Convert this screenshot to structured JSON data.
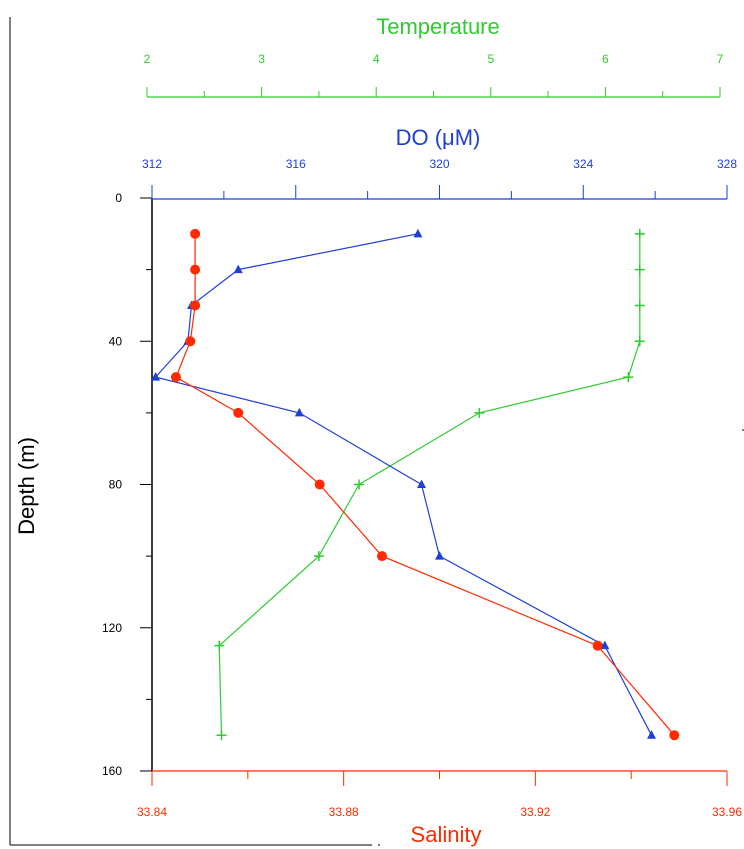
{
  "chart_data": {
    "type": "line",
    "y_axis": {
      "label": "Depth (m)",
      "range": [
        0,
        160
      ],
      "inverted": true,
      "ticks": [
        0,
        40,
        80,
        120,
        160
      ],
      "tick_labels": [
        "0",
        "40",
        "80",
        "120",
        "160"
      ],
      "minor_step": 20
    },
    "x_axes": [
      {
        "id": "temperature",
        "label": "Temperature",
        "color": "#2ecc2e",
        "position": "top",
        "range": [
          2,
          7
        ],
        "ticks": [
          2,
          3,
          4,
          5,
          6,
          7
        ],
        "tick_labels": [
          "2",
          "3",
          "4",
          "5",
          "6",
          "7"
        ],
        "minor_step": 0.5
      },
      {
        "id": "do",
        "label": "DO (μM)",
        "color": "#1f3fd6",
        "position": "top",
        "range": [
          312,
          328
        ],
        "ticks": [
          312,
          316,
          320,
          324,
          328
        ],
        "tick_labels": [
          "312",
          "316",
          "320",
          "324",
          "328"
        ],
        "minor_step": 2
      },
      {
        "id": "salinity",
        "label": "Salinity",
        "color": "#ff2a00",
        "position": "bottom",
        "range": [
          33.84,
          33.96
        ],
        "ticks": [
          33.84,
          33.88,
          33.92,
          33.96
        ],
        "tick_labels": [
          "33.84",
          "33.88",
          "33.92",
          "33.96"
        ],
        "minor_step": 0.02
      }
    ],
    "series": [
      {
        "axis": "temperature",
        "marker": "plus",
        "color": "#2ecc2e",
        "points": [
          [
            6.3,
            10
          ],
          [
            6.3,
            20
          ],
          [
            6.3,
            30
          ],
          [
            6.3,
            40
          ],
          [
            6.2,
            50
          ],
          [
            4.9,
            60
          ],
          [
            3.85,
            80
          ],
          [
            3.5,
            100
          ],
          [
            2.63,
            125
          ],
          [
            2.65,
            150
          ]
        ]
      },
      {
        "axis": "do",
        "marker": "triangle",
        "color": "#1f3fd6",
        "points": [
          [
            319.4,
            10
          ],
          [
            314.4,
            20
          ],
          [
            313.1,
            30
          ],
          [
            313.0,
            40
          ],
          [
            312.1,
            50
          ],
          [
            316.1,
            60
          ],
          [
            319.5,
            80
          ],
          [
            320.0,
            100
          ],
          [
            324.6,
            125
          ],
          [
            325.9,
            150
          ]
        ]
      },
      {
        "axis": "salinity",
        "marker": "circle",
        "color": "#ff2a00",
        "points": [
          [
            33.849,
            10
          ],
          [
            33.849,
            20
          ],
          [
            33.849,
            30
          ],
          [
            33.848,
            40
          ],
          [
            33.845,
            50
          ],
          [
            33.858,
            60
          ],
          [
            33.875,
            80
          ],
          [
            33.888,
            100
          ],
          [
            33.933,
            125
          ],
          [
            33.949,
            150
          ]
        ]
      }
    ],
    "grid": false,
    "legend": "none"
  }
}
